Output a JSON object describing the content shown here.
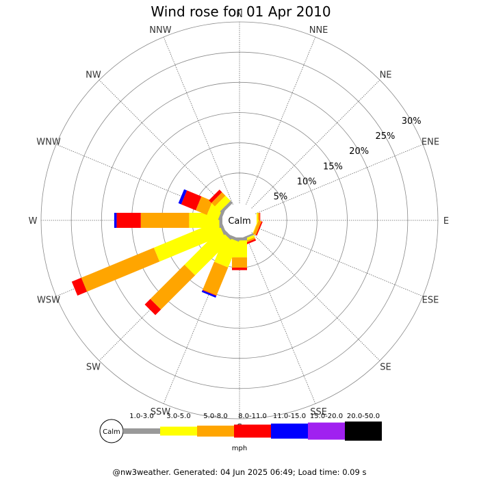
{
  "title": "Wind rose for 01 Apr 2010",
  "footer": "@nw3weather. Generated: 04 Jun 2025 06:49; Load time: 0.09 s",
  "calm_label": "Calm",
  "unit": "mph",
  "chart_data": {
    "type": "windrose",
    "title": "Wind rose for 01 Apr 2010",
    "directions": [
      "N",
      "NNE",
      "NE",
      "ENE",
      "E",
      "ESE",
      "SE",
      "SSE",
      "S",
      "SSW",
      "SW",
      "WSW",
      "W",
      "WNW",
      "NW",
      "NNW"
    ],
    "ring_labels": [
      "5%",
      "10%",
      "15%",
      "20%",
      "25%",
      "30%"
    ],
    "ring_max_percent": 30,
    "speed_bins": [
      {
        "label": "1.0-3.0",
        "color": "#999999"
      },
      {
        "label": "3.0-5.0",
        "color": "#ffff00"
      },
      {
        "label": "5.0-8.0",
        "color": "#ffa500"
      },
      {
        "label": "8.0-11.0",
        "color": "#ff0000"
      },
      {
        "label": "11.0-15.0",
        "color": "#0000ff"
      },
      {
        "label": "15.0-20.0",
        "color": "#a020f0"
      },
      {
        "label": "20.0-50.0",
        "color": "#000000"
      }
    ],
    "series_percent": {
      "N": [
        0,
        0,
        0,
        0,
        0,
        0,
        0
      ],
      "NNE": [
        0,
        0,
        0,
        0,
        0,
        0,
        0
      ],
      "NE": [
        0,
        0,
        0,
        0,
        0,
        0,
        0
      ],
      "ENE": [
        0,
        0,
        0,
        0,
        0,
        0,
        0
      ],
      "E": [
        0,
        0.2,
        0.3,
        0.1,
        0,
        0,
        0
      ],
      "ESE": [
        0,
        0.1,
        0.5,
        0.2,
        0,
        0,
        0
      ],
      "SE": [
        0,
        0,
        0,
        0,
        0,
        0,
        0
      ],
      "SSE": [
        0.3,
        0.4,
        0.3,
        0.3,
        0,
        0,
        0
      ],
      "S": [
        0.5,
        2.8,
        1.7,
        0.4,
        0,
        0,
        0
      ],
      "SSW": [
        0.5,
        4.6,
        5.0,
        0.1,
        0.3,
        0,
        0
      ],
      "SW": [
        0.5,
        8.3,
        8.0,
        1.3,
        0,
        0,
        0
      ],
      "WSW": [
        0.5,
        11.5,
        13.0,
        1.7,
        0,
        0,
        0
      ],
      "W": [
        0.5,
        5.0,
        8.0,
        4.0,
        0.4,
        0,
        0
      ],
      "WNW": [
        0.5,
        2.0,
        2.0,
        2.6,
        0.5,
        0,
        0
      ],
      "NW": [
        0.5,
        1.2,
        0.8,
        0.6,
        0,
        0,
        0
      ],
      "NNW": [
        0,
        0,
        0,
        0,
        0,
        0,
        0
      ]
    }
  }
}
